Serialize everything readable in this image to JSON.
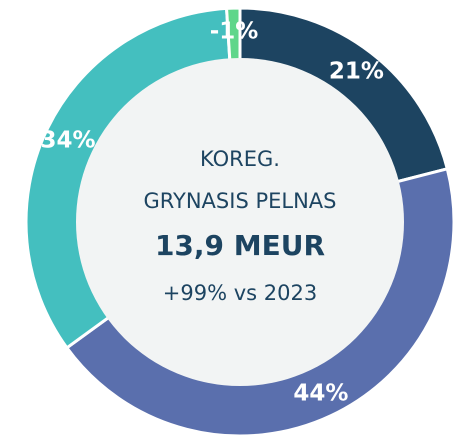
{
  "chart_data": {
    "type": "donut",
    "title": "KOREG.",
    "subtitle": "GRYNASIS PELNAS",
    "center_value": "13,9 MEUR",
    "center_note": "+99% vs 2023",
    "categories": [
      null,
      null,
      null,
      null
    ],
    "values": [
      21,
      44,
      34,
      -1
    ],
    "value_labels": [
      "21%",
      "44%",
      "34%",
      "-1%"
    ],
    "colors": [
      "#1d4461",
      "#5a6fad",
      "#44bfbf",
      "#5fd68a"
    ]
  }
}
